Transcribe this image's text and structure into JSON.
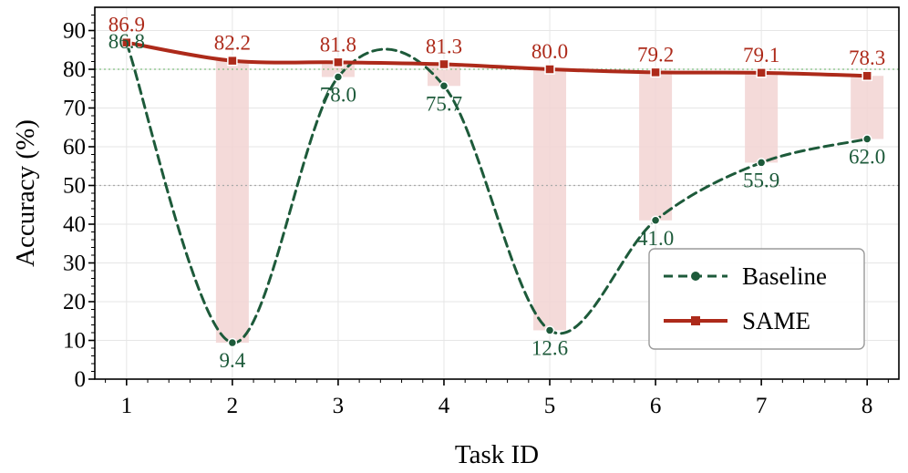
{
  "chart_data": {
    "type": "line",
    "xlabel": "Task ID",
    "ylabel": "Accuracy (%)",
    "categories": [
      "1",
      "2",
      "3",
      "4",
      "5",
      "6",
      "7",
      "8"
    ],
    "x": [
      1,
      2,
      3,
      4,
      5,
      6,
      7,
      8
    ],
    "xlim": [
      0.7,
      8.3
    ],
    "ylim": [
      0,
      96
    ],
    "yticks": [
      0,
      10,
      20,
      30,
      40,
      50,
      60,
      70,
      80,
      90
    ],
    "grid": true,
    "reference_lines": [
      {
        "y": 80,
        "color": "#7fbf7f",
        "style": "dotted"
      },
      {
        "y": 50,
        "color": "#aaaaaa",
        "style": "dotted"
      }
    ],
    "legend_position": "lower-right",
    "series": [
      {
        "name": "Baseline",
        "values": [
          86.8,
          9.4,
          78.0,
          75.7,
          12.6,
          41.0,
          55.9,
          62.0
        ],
        "labels": [
          "86.8",
          "9.4",
          "78.0",
          "75.7",
          "12.6",
          "41.0",
          "55.9",
          "62.0"
        ],
        "color": "#1d5a3a",
        "line_style": "dashed",
        "marker": "circle"
      },
      {
        "name": "SAME",
        "values": [
          86.9,
          82.2,
          81.8,
          81.3,
          80.0,
          79.2,
          79.1,
          78.3
        ],
        "labels": [
          "86.9",
          "82.2",
          "81.8",
          "81.3",
          "80.0",
          "79.2",
          "79.1",
          "78.3"
        ],
        "color": "#ad2a1a",
        "line_style": "solid",
        "marker": "square"
      }
    ],
    "gap_fill_color": "#f2d4d2"
  }
}
